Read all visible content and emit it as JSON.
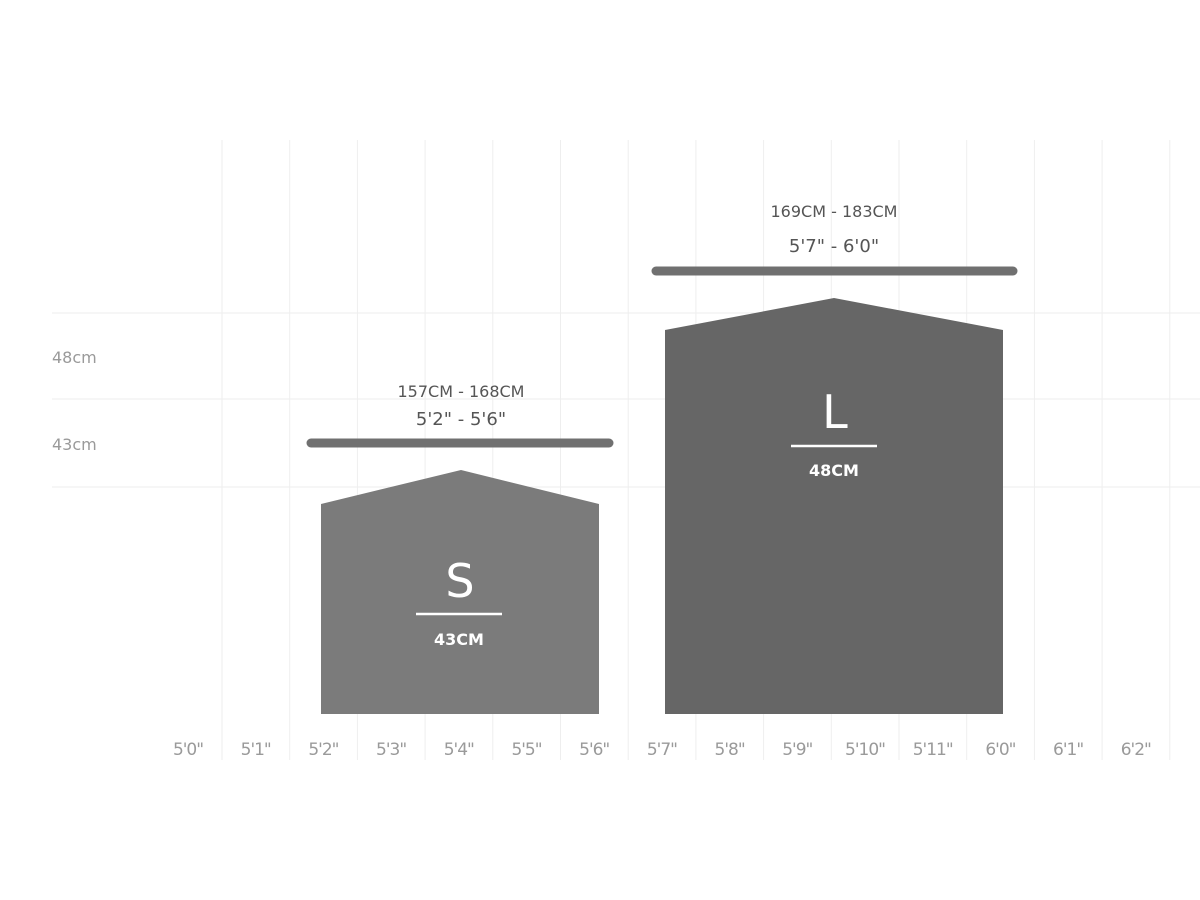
{
  "x_ticks": [
    "5'0\"",
    "5'1\"",
    "5'2\"",
    "5'3\"",
    "5'4\"",
    "5'5\"",
    "5'6\"",
    "5'7\"",
    "5'8\"",
    "5'9\"",
    "5'10\"",
    "5'11\"",
    "6'0\"",
    "6'1\"",
    "6'2\""
  ],
  "y_labels": [
    {
      "label": "48cm",
      "value": 48
    },
    {
      "label": "43cm",
      "value": 43
    }
  ],
  "sizes": [
    {
      "letter": "S",
      "measure": "43CM",
      "range_cm": "157CM - 168CM",
      "range_in": "5'2\" - 5'6\"",
      "from_tick": 2,
      "to_tick": 6,
      "value": 43,
      "color": "#7b7b7b"
    },
    {
      "letter": "L",
      "measure": "48CM",
      "range_cm": "169CM - 183CM",
      "range_in": "5'7\" - 6'0\"",
      "from_tick": 7,
      "to_tick": 12,
      "value": 48,
      "color": "#666666"
    }
  ],
  "colors": {
    "grid": "#eeeeee",
    "bar": "#707070"
  }
}
